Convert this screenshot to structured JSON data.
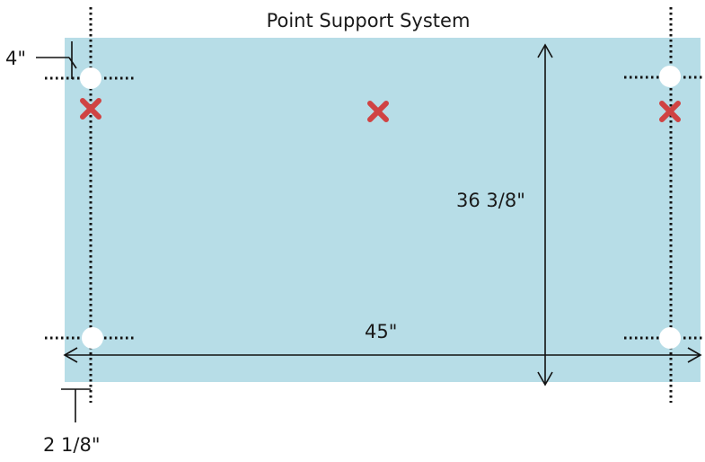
{
  "title": "Point Support System",
  "dimensions": {
    "edge_offset": "4\"",
    "height": "36 3/8\"",
    "width": "45\"",
    "side_offset": "2 1/8\""
  },
  "colors": {
    "panel": "#b7dde7",
    "hole": "#ffffff",
    "support_mark": "#d04343",
    "lines": "#111111"
  },
  "legend": {
    "support_points": "x-mark-icon",
    "holes": "circle-icon"
  }
}
